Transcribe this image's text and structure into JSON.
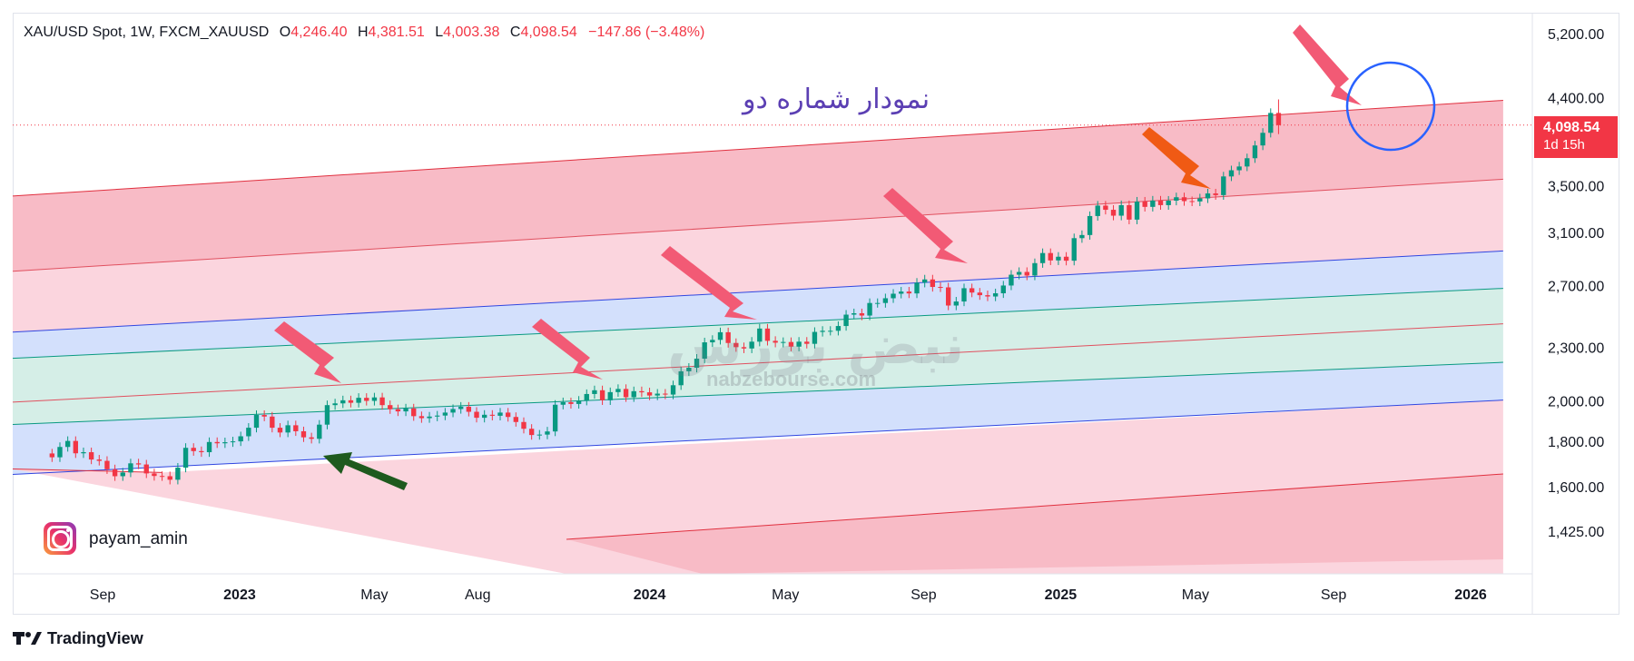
{
  "header": {
    "symbol": "XAU/USD Spot, 1W, FXCM_XAUUSD",
    "o_label": "O",
    "o_value": "4,246.40",
    "h_label": "H",
    "h_value": "4,381.51",
    "l_label": "L",
    "l_value": "4,003.38",
    "c_label": "C",
    "c_value": "4,098.54",
    "change": "−147.86 (−3.48%)"
  },
  "annotation_text": "نمودار شماره دو",
  "watermark": {
    "brand": "نبض بورس",
    "url": "nabzebourse.com"
  },
  "price_badge": {
    "price": "4,098.54",
    "countdown": "1d 15h"
  },
  "instagram": {
    "icon": "instagram-icon",
    "handle": "payam_amin"
  },
  "footer": {
    "logo_icon": "tradingview-logo-icon",
    "brand": "TradingView"
  },
  "colors": {
    "up": "#089981",
    "down": "#f23645",
    "channel_red": "#f8bbc6",
    "channel_pink": "#fbd5de",
    "channel_blue": "#d3e0fc",
    "channel_green": "#d5eee7"
  },
  "chart_data": {
    "type": "candlestick",
    "title": "",
    "xlabel": "",
    "ylabel": "",
    "y_scale": "log",
    "ylim": [
      1300,
      5500
    ],
    "y_ticks": [
      "5,200.00",
      "4,400.00",
      "3,500.00",
      "3,100.00",
      "2,700.00",
      "2,300.00",
      "2,000.00",
      "1,800.00",
      "1,600.00",
      "1,425.00"
    ],
    "y_tick_values": [
      5200,
      4400,
      3500,
      3100,
      2700,
      2300,
      2000,
      1800,
      1600,
      1425
    ],
    "x_ticks": [
      "Sep",
      "2023",
      "May",
      "Aug",
      "2024",
      "May",
      "Sep",
      "2025",
      "May",
      "Sep",
      "2026"
    ],
    "x_tick_dates": [
      "2022-09-01",
      "2023-01-01",
      "2023-05-01",
      "2023-08-01",
      "2024-01-01",
      "2024-05-01",
      "2024-09-01",
      "2025-01-01",
      "2025-05-01",
      "2025-09-01",
      "2026-01-01"
    ],
    "x_range": [
      "2022-07-18",
      "2026-02-20"
    ],
    "last_price": 4098.54,
    "closes_weekly_from_2022-07-18": [
      1727,
      1774,
      1802,
      1745,
      1750,
      1717,
      1711,
      1674,
      1644,
      1660,
      1700,
      1695,
      1656,
      1645,
      1644,
      1629,
      1681,
      1770,
      1755,
      1750,
      1797,
      1791,
      1796,
      1800,
      1824,
      1865,
      1928,
      1920,
      1865,
      1842,
      1877,
      1848,
      1819,
      1812,
      1880,
      1978,
      1987,
      2003,
      1990,
      2016,
      2000,
      2018,
      1978,
      1957,
      1946,
      1961,
      1922,
      1912,
      1920,
      1925,
      1940,
      1958,
      1970,
      1944,
      1914,
      1929,
      1924,
      1940,
      1918,
      1893,
      1860,
      1830,
      1832,
      1847,
      1980,
      1993,
      1984,
      2001,
      2036,
      2056,
      2003,
      2046,
      2063,
      2019,
      2051,
      2045,
      2028,
      2038,
      2033,
      2083,
      2160,
      2180,
      2232,
      2329,
      2344,
      2391,
      2325,
      2300,
      2292,
      2333,
      2414,
      2338,
      2327,
      2331,
      2303,
      2333,
      2320,
      2393,
      2400,
      2400,
      2430,
      2503,
      2512,
      2497,
      2580,
      2580,
      2612,
      2643,
      2658,
      2645,
      2720,
      2743,
      2690,
      2687,
      2563,
      2590,
      2681,
      2651,
      2633,
      2624,
      2646,
      2700,
      2777,
      2797,
      2771,
      2862,
      2938,
      2882,
      2910,
      2880,
      3054,
      3079,
      3235,
      3324,
      3288,
      3238,
      3328,
      3205,
      3359,
      3313,
      3368,
      3328,
      3367,
      3397,
      3363,
      3360,
      3387,
      3431,
      3416,
      3586,
      3644,
      3680,
      3760,
      3887,
      4017,
      4230,
      4098
    ],
    "channel_lines": [
      {
        "name": "",
        "start": [
          "2022-07-18",
          1660
        ],
        "end": [
          "2026-01-30",
          2004
        ]
      },
      {
        "name": "",
        "start": [
          "2022-07-18",
          1889
        ],
        "end": [
          "2026-01-30",
          2211
        ]
      },
      {
        "name": "",
        "start": [
          "2022-07-18",
          2004
        ],
        "end": [
          "2026-01-30",
          2444
        ]
      },
      {
        "name": "",
        "start": [
          "2022-07-18",
          2245
        ],
        "end": [
          "2026-01-30",
          2680
        ]
      },
      {
        "name": "",
        "start": [
          "2022-07-18",
          2405
        ],
        "end": [
          "2026-01-30",
          2954
        ]
      },
      {
        "name": "",
        "start": [
          "2022-07-18",
          2820
        ],
        "end": [
          "2026-01-30",
          3560
        ]
      },
      {
        "name": "",
        "start": [
          "2022-07-18",
          3430
        ],
        "end": [
          "2026-01-30",
          4371
        ]
      }
    ],
    "grid": false,
    "legend": "none"
  }
}
